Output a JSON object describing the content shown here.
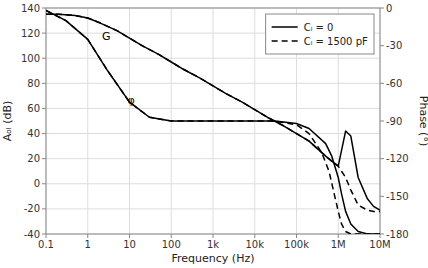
{
  "chart_data": {
    "type": "line",
    "xlabel": "Frequency (Hz)",
    "ylabel": "Aₒₗ (dB)",
    "y2label": "Phase (°)",
    "log": "x",
    "grid": true,
    "legend": "upper right",
    "xlim": [
      0.1,
      10000000
    ],
    "xticks": [
      0.1,
      1,
      10,
      100,
      {
        "value": 1000,
        "label": "1k"
      },
      {
        "value": 10000,
        "label": "10k"
      },
      {
        "value": 100000,
        "label": "100k"
      },
      {
        "value": 1000000,
        "label": "1M"
      },
      {
        "value": 10000000,
        "label": "10M"
      }
    ],
    "ylim": [
      -40,
      140
    ],
    "yticks": [
      -40,
      -20,
      0,
      20,
      40,
      60,
      80,
      100,
      120,
      140
    ],
    "y2lim": [
      -180,
      0
    ],
    "y2ticks": [
      0,
      -30,
      -60,
      -90,
      -120,
      -150,
      -180
    ],
    "series": [
      {
        "name": "Cₗ = 0",
        "color": "black",
        "line_style": "solid",
        "x": [
          0.1,
          0.2,
          0.5,
          1,
          2,
          5,
          10,
          20,
          50,
          100,
          200,
          500,
          1000,
          2000,
          5000,
          10000,
          20000,
          50000,
          100000,
          200000,
          500000,
          700000,
          1000000,
          1500000,
          2000000,
          3000000,
          5000000,
          7000000,
          10000000
        ],
        "values": [
          135,
          135,
          134,
          132,
          128,
          122,
          116,
          110,
          103,
          97,
          91,
          84,
          78,
          72,
          65,
          59,
          53,
          46,
          40,
          34,
          22,
          18,
          14,
          42,
          38,
          5,
          -12,
          -18,
          -21
        ]
      },
      {
        "name": "Cₗ = 1500 pF",
        "color": "black",
        "line_style": "dashed",
        "x": [
          0.1,
          0.2,
          0.5,
          1,
          2,
          5,
          10,
          20,
          50,
          100,
          200,
          500,
          1000,
          2000,
          5000,
          10000,
          20000,
          50000,
          100000,
          200000,
          500000,
          700000,
          1000000,
          1200000,
          1500000,
          2000000,
          3000000,
          5000000,
          7000000,
          10000000
        ],
        "values": [
          135,
          135,
          134,
          132,
          128,
          122,
          116,
          110,
          103,
          97,
          91,
          84,
          78,
          72,
          65,
          59,
          53,
          46,
          40,
          34,
          22,
          18,
          14,
          10,
          5,
          -5,
          -17,
          -21,
          -22,
          -22
        ]
      },
      {
        "axis": "y2",
        "color": "black",
        "line_style": "solid",
        "x": [
          0.1,
          0.3,
          1,
          3,
          10,
          30,
          100,
          300,
          1000,
          3000,
          10000,
          30000,
          100000,
          200000,
          500000,
          700000,
          1000000,
          1200000,
          1500000,
          2000000,
          3000000,
          5000000,
          10000000
        ],
        "values": [
          -2,
          -10,
          -25,
          -50,
          -75,
          -87,
          -90,
          -90,
          -90,
          -90,
          -90,
          -90,
          -92,
          -96,
          -108,
          -118,
          -135,
          -148,
          -162,
          -172,
          -178,
          -180,
          -180
        ]
      },
      {
        "axis": "y2",
        "color": "black",
        "line_style": "dashed",
        "x": [
          0.1,
          0.3,
          1,
          3,
          10,
          30,
          100,
          300,
          1000,
          3000,
          10000,
          30000,
          100000,
          200000,
          400000,
          600000,
          800000,
          1000000,
          1200000,
          1500000,
          2000000,
          3000000,
          5000000,
          10000000
        ],
        "values": [
          -2,
          -10,
          -25,
          -50,
          -75,
          -87,
          -90,
          -90,
          -90,
          -90,
          -90,
          -90,
          -93,
          -100,
          -115,
          -130,
          -148,
          -162,
          -172,
          -178,
          -180,
          -180,
          -180,
          -180
        ]
      }
    ],
    "annotations": [
      {
        "text": "G",
        "x": 2.2,
        "y": 118
      },
      {
        "text": "φ",
        "x": 9,
        "y": 67
      }
    ]
  }
}
